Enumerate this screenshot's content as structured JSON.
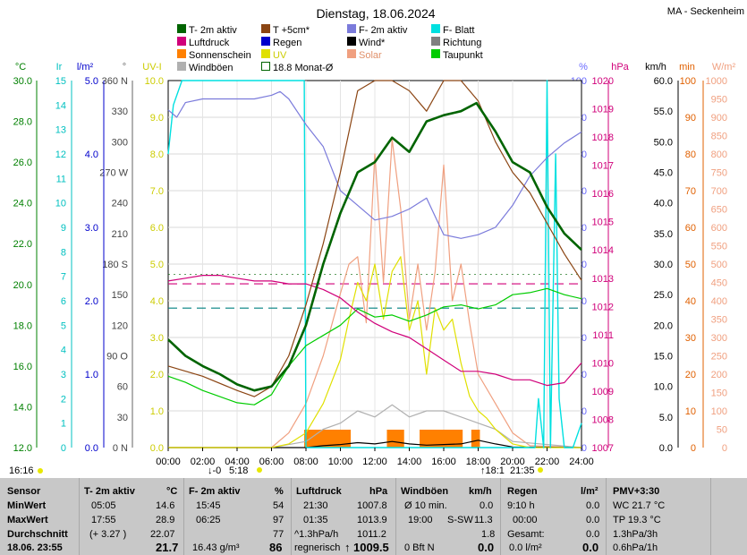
{
  "header": {
    "title": "Dienstag, 18.06.2024",
    "location": "MA - Seckenheim"
  },
  "legend": [
    {
      "label": "T- 2m aktiv",
      "color": "#006400",
      "style": "fill"
    },
    {
      "label": "T +5cm*",
      "color": "#8b4513",
      "style": "fill"
    },
    {
      "label": "F- 2m aktiv",
      "color": "#7b7bdb",
      "style": "fill"
    },
    {
      "label": "F- Blatt",
      "color": "#00e0e0",
      "style": "fill"
    },
    {
      "label": "Luftdruck",
      "color": "#d0007a",
      "style": "fill"
    },
    {
      "label": "Regen",
      "color": "#0000cc",
      "style": "fill"
    },
    {
      "label": "Wind*",
      "color": "#000000",
      "style": "fill"
    },
    {
      "label": "Richtung",
      "color": "#808080",
      "style": "fill"
    },
    {
      "label": "Sonnenschein",
      "color": "#ff8000",
      "style": "fill"
    },
    {
      "label": "UV",
      "color": "#e0e000",
      "style": "fill"
    },
    {
      "label": "Solar",
      "color": "#f0a080",
      "style": "fill"
    },
    {
      "label": "Taupunkt",
      "color": "#00cc00",
      "style": "fill"
    },
    {
      "label": "Windböen",
      "color": "#b0b0b0",
      "style": "fill"
    },
    {
      "label": "18.8 Monat-Ø",
      "color": "#006400",
      "style": "outline"
    }
  ],
  "axes": {
    "temp": {
      "unit": "°C",
      "ticks": [
        "30.0",
        "28.0",
        "26.0",
        "24.0",
        "22.0",
        "20.0",
        "18.0",
        "16.0",
        "14.0",
        "12.0"
      ],
      "color": "#008000"
    },
    "ir": {
      "unit": "Ir",
      "ticks": [
        "15",
        "14",
        "13",
        "12",
        "11",
        "10",
        "9",
        "8",
        "7",
        "6",
        "5",
        "4",
        "3",
        "2",
        "1",
        "0"
      ],
      "color": "#00c0c0"
    },
    "rain": {
      "unit": "l/m²",
      "ticks": [
        "5.0",
        "4.0",
        "3.0",
        "2.0",
        "1.0",
        "0.0"
      ],
      "color": "#0000cc"
    },
    "dir": {
      "unit": "°",
      "ticks": [
        "360 N",
        "330",
        "300",
        "270 W",
        "240",
        "210",
        "180 S",
        "150",
        "120",
        "90 O",
        "60",
        "30",
        "0 N"
      ],
      "color": "#666666"
    },
    "uv": {
      "unit": "UV-I",
      "ticks": [
        "10.0",
        "9.0",
        "8.0",
        "7.0",
        "6.0",
        "5.0",
        "4.0",
        "3.0",
        "2.0",
        "1.0",
        "0.0"
      ],
      "color": "#cccc00"
    },
    "hum": {
      "unit": "%",
      "ticks": [
        "100",
        "90",
        "80",
        "70",
        "60",
        "50",
        "40",
        "30",
        "20",
        "10",
        "0"
      ],
      "color": "#6a6aff"
    },
    "press": {
      "unit": "hPa",
      "ticks": [
        "1020",
        "1019",
        "1018",
        "1017",
        "1016",
        "1015",
        "1014",
        "1013",
        "1012",
        "1011",
        "1010",
        "1009",
        "1008",
        "1007"
      ],
      "color": "#d0007a"
    },
    "wind": {
      "unit": "km/h",
      "ticks": [
        "60.0",
        "55.0",
        "50.0",
        "45.0",
        "40.0",
        "35.0",
        "30.0",
        "25.0",
        "20.0",
        "15.0",
        "10.0",
        "5.0",
        "0.0"
      ],
      "color": "#000000"
    },
    "min": {
      "unit": "min",
      "ticks": [
        "100",
        "90",
        "80",
        "70",
        "60",
        "50",
        "40",
        "30",
        "20",
        "10",
        "0"
      ],
      "color": "#e06000"
    },
    "solar": {
      "unit": "W/m²",
      "ticks": [
        "1000",
        "950",
        "900",
        "850",
        "800",
        "750",
        "700",
        "650",
        "600",
        "550",
        "500",
        "450",
        "400",
        "350",
        "300",
        "250",
        "200",
        "150",
        "100",
        "50",
        "0"
      ],
      "color": "#f0a080"
    },
    "time": {
      "ticks": [
        "00:00",
        "02:00",
        "04:00",
        "06:00",
        "08:00",
        "10:00",
        "12:00",
        "14:00",
        "16:00",
        "18:00",
        "20:00",
        "22:00",
        "24:00"
      ]
    }
  },
  "sun": {
    "rise_label": "5:18",
    "set_label": "21:35",
    "moonrise_label": "-0",
    "moonset_label": "18:1",
    "left_time": "16:16"
  },
  "chart_data": {
    "type": "line",
    "x_unit": "hour",
    "xlim": [
      0,
      24
    ],
    "series": [
      {
        "name": "T- 2m aktiv",
        "unit": "°C",
        "color": "#006400",
        "x": [
          0,
          1,
          2,
          3,
          4,
          5,
          6,
          7,
          8,
          9,
          10,
          11,
          12,
          13,
          14,
          15,
          16,
          17,
          17.9,
          19,
          20,
          21,
          22,
          23,
          24
        ],
        "y": [
          17.3,
          16.5,
          16.0,
          15.6,
          15.1,
          14.8,
          15.0,
          16.0,
          18.0,
          21.0,
          23.5,
          25.5,
          26.0,
          27.2,
          26.5,
          28.0,
          28.3,
          28.5,
          28.9,
          27.5,
          26.0,
          25.5,
          23.8,
          22.5,
          21.7
        ]
      },
      {
        "name": "T +5cm*",
        "unit": "°C",
        "color": "#8b4513",
        "x": [
          0,
          2,
          4,
          5,
          6,
          7,
          8,
          9,
          10,
          11,
          12,
          13,
          14,
          15,
          16,
          17,
          18,
          19,
          20,
          21,
          22,
          23,
          24
        ],
        "y": [
          16.0,
          15.5,
          14.8,
          14.5,
          15.0,
          16.5,
          19.0,
          22.0,
          25.5,
          29.5,
          31.0,
          30.0,
          29.5,
          28.5,
          31.0,
          30.5,
          29.0,
          27.0,
          25.5,
          24.5,
          23.0,
          21.5,
          20.2
        ]
      },
      {
        "name": "Taupunkt",
        "unit": "°C",
        "color": "#00cc00",
        "x": [
          0,
          1,
          2,
          3,
          4,
          5,
          6,
          7,
          8,
          9,
          10,
          11,
          12,
          13,
          14,
          15,
          16,
          17,
          18,
          19,
          20,
          21,
          22,
          23,
          24
        ],
        "y": [
          15.5,
          15.2,
          14.8,
          14.5,
          14.2,
          14.1,
          14.6,
          16.0,
          17.0,
          17.5,
          18.0,
          18.8,
          18.4,
          18.5,
          18.2,
          18.5,
          18.9,
          19.0,
          18.8,
          19.0,
          19.5,
          19.6,
          19.8,
          19.5,
          19.3
        ]
      },
      {
        "name": "F- 2m aktiv",
        "unit": "%",
        "color": "#7b7bdb",
        "x": [
          0,
          0.5,
          1,
          2,
          3,
          4,
          5,
          6,
          6.5,
          7,
          8,
          9,
          10,
          11,
          12,
          13,
          14,
          15,
          16,
          17,
          18,
          19,
          20,
          21,
          22,
          23,
          24
        ],
        "y": [
          92,
          90,
          94,
          95,
          95,
          95,
          95,
          96,
          97,
          95,
          88,
          82,
          70,
          66,
          62,
          63,
          65,
          68,
          58,
          57,
          58,
          60,
          66,
          74,
          79,
          83,
          86
        ]
      },
      {
        "name": "Luftdruck",
        "unit": "hPa",
        "color": "#d0007a",
        "x": [
          0,
          1,
          2,
          3,
          4,
          5,
          6,
          7,
          8,
          9,
          10,
          11,
          12,
          13,
          14,
          15,
          16,
          17,
          18,
          19,
          20,
          21,
          22,
          23,
          24
        ],
        "y": [
          1012.9,
          1013.0,
          1013.1,
          1013.1,
          1013.0,
          1012.9,
          1012.9,
          1012.8,
          1012.8,
          1012.6,
          1012.3,
          1011.8,
          1011.4,
          1011.1,
          1010.9,
          1010.5,
          1010.1,
          1009.7,
          1009.7,
          1009.6,
          1009.4,
          1009.4,
          1009.2,
          1009.3,
          1010.0
        ]
      },
      {
        "name": "UV",
        "unit": "UV-I",
        "color": "#e0e000",
        "x": [
          0,
          6,
          7,
          8,
          9,
          10,
          10.5,
          11,
          11.5,
          12,
          12.5,
          13,
          13.5,
          14,
          14.5,
          15,
          15.5,
          16,
          16.5,
          17,
          17.5,
          18,
          18.5,
          19,
          20,
          21,
          24
        ],
        "y": [
          0,
          0,
          0.1,
          0.4,
          1.2,
          2.4,
          3.5,
          4.5,
          4.0,
          5.0,
          3.5,
          4.8,
          5.2,
          3.2,
          4.0,
          2.0,
          3.8,
          3.2,
          3.5,
          2.3,
          1.4,
          1.0,
          0.8,
          0.5,
          0.1,
          0,
          0
        ]
      },
      {
        "name": "Solar",
        "unit": "W/m²",
        "color": "#f0a080",
        "x": [
          0,
          6,
          7,
          8,
          9,
          10,
          10.5,
          11,
          11.5,
          12,
          12.5,
          13,
          13.5,
          14,
          14.5,
          15,
          15.5,
          16,
          16.5,
          17,
          17.5,
          18,
          19,
          20,
          21,
          24
        ],
        "y": [
          0,
          0,
          40,
          120,
          250,
          420,
          500,
          520,
          340,
          800,
          450,
          840,
          650,
          350,
          500,
          320,
          480,
          770,
          400,
          500,
          340,
          200,
          120,
          40,
          5,
          0
        ]
      },
      {
        "name": "Windböen",
        "unit": "km/h",
        "color": "#b0b0b0",
        "x": [
          0,
          6,
          8,
          9,
          10,
          11,
          12,
          13,
          14,
          15,
          16,
          17,
          18,
          19,
          20,
          24
        ],
        "y": [
          0,
          0,
          1,
          3,
          4,
          6,
          5,
          7,
          5,
          6,
          6,
          5,
          4,
          3,
          1,
          0
        ]
      },
      {
        "name": "Wind*",
        "unit": "km/h",
        "color": "#000000",
        "x": [
          0,
          8,
          9,
          10,
          11,
          12,
          13,
          14,
          15,
          16,
          17,
          18,
          19,
          20,
          24
        ],
        "y": [
          0,
          0,
          0.3,
          0.5,
          0.8,
          0.6,
          1.0,
          0.6,
          0.4,
          0.5,
          0.6,
          1.2,
          0.6,
          0.1,
          0
        ]
      },
      {
        "name": "F- Blatt",
        "unit": "Ir",
        "color": "#00e0e0",
        "x": [
          0,
          0.3,
          0.8,
          2,
          4,
          6,
          7.9,
          8.0,
          21.3,
          21.5,
          21.8,
          22.0,
          22.2,
          22.5,
          22.7,
          23.0,
          23.5,
          24
        ],
        "y": [
          12,
          14,
          15,
          15,
          15,
          15,
          15,
          0,
          0,
          2,
          0,
          15,
          0,
          12,
          2,
          0,
          0,
          1
        ]
      }
    ],
    "monthly_avg_temp_C": 20.5,
    "dashed_levels": [
      {
        "axis": "hPa",
        "value": 1012.8,
        "color": "#d0007a"
      },
      {
        "axis": "%",
        "value": 38,
        "color": "#008080"
      }
    ],
    "sunshine_minutes": [
      {
        "from": 7.9,
        "to": 10.6
      },
      {
        "from": 12.7,
        "to": 13.7
      },
      {
        "from": 14.6,
        "to": 17.1
      },
      {
        "from": 17.6,
        "to": 18.1
      }
    ]
  },
  "summary": {
    "headers": {
      "sensor": "Sensor",
      "t2m": "T- 2m aktiv",
      "t2m_unit": "°C",
      "f2m": "F- 2m aktiv",
      "f2m_unit": "%",
      "press": "Luftdruck",
      "press_unit": "hPa",
      "gust": "Windböen",
      "gust_unit": "km/h",
      "rain": "Regen",
      "rain_unit": "l/m²",
      "pmv": "PMV+3:30"
    },
    "row_labels": {
      "min": "MinWert",
      "max": "MaxWert",
      "avg": "Durchschnitt",
      "date": "18.06. 23:55"
    },
    "t2m": {
      "min_time": "05:05",
      "min_val": "14.6",
      "max_time": "17:55",
      "max_val": "28.9",
      "avg_note": "(+ 3.27 )",
      "avg_val": "22.07",
      "current": "21.7"
    },
    "f2m": {
      "min_time": "15:45",
      "min_val": "54",
      "max_time": "06:25",
      "max_val": "97",
      "avg_val": "77",
      "abs": "16.43 g/m³",
      "current": "86"
    },
    "press": {
      "min_time": "21:30",
      "min_val": "1007.8",
      "max_time": "01:35",
      "max_val": "1013.9",
      "trend": "^1.3hPa/h",
      "avg_val": "1011.2",
      "tendency": "regnerisch",
      "current": "1009.5"
    },
    "gust": {
      "avg10_label": "Ø 10 min.",
      "avg10_val": "0.0",
      "max_time": "19:00",
      "max_dir": "S-SW",
      "max_val": "11.3",
      "avg_val": "1.8",
      "bft": "0 Bft N",
      "current": "0.0"
    },
    "rain": {
      "h1_label": "9:10 h",
      "h1_val": "0.0",
      "h2_label": "00:00",
      "h2_val": "0.0",
      "total_label": "Gesamt:",
      "total_val": "0.0",
      "rate": "0.0 l/m²",
      "current": "0.0"
    },
    "pmv": {
      "wc": "WC 21.7 °C",
      "tp": "TP 19.3 °C",
      "rate1": "1.3hPa/3h",
      "rate2": "0.6hPa/1h"
    }
  }
}
